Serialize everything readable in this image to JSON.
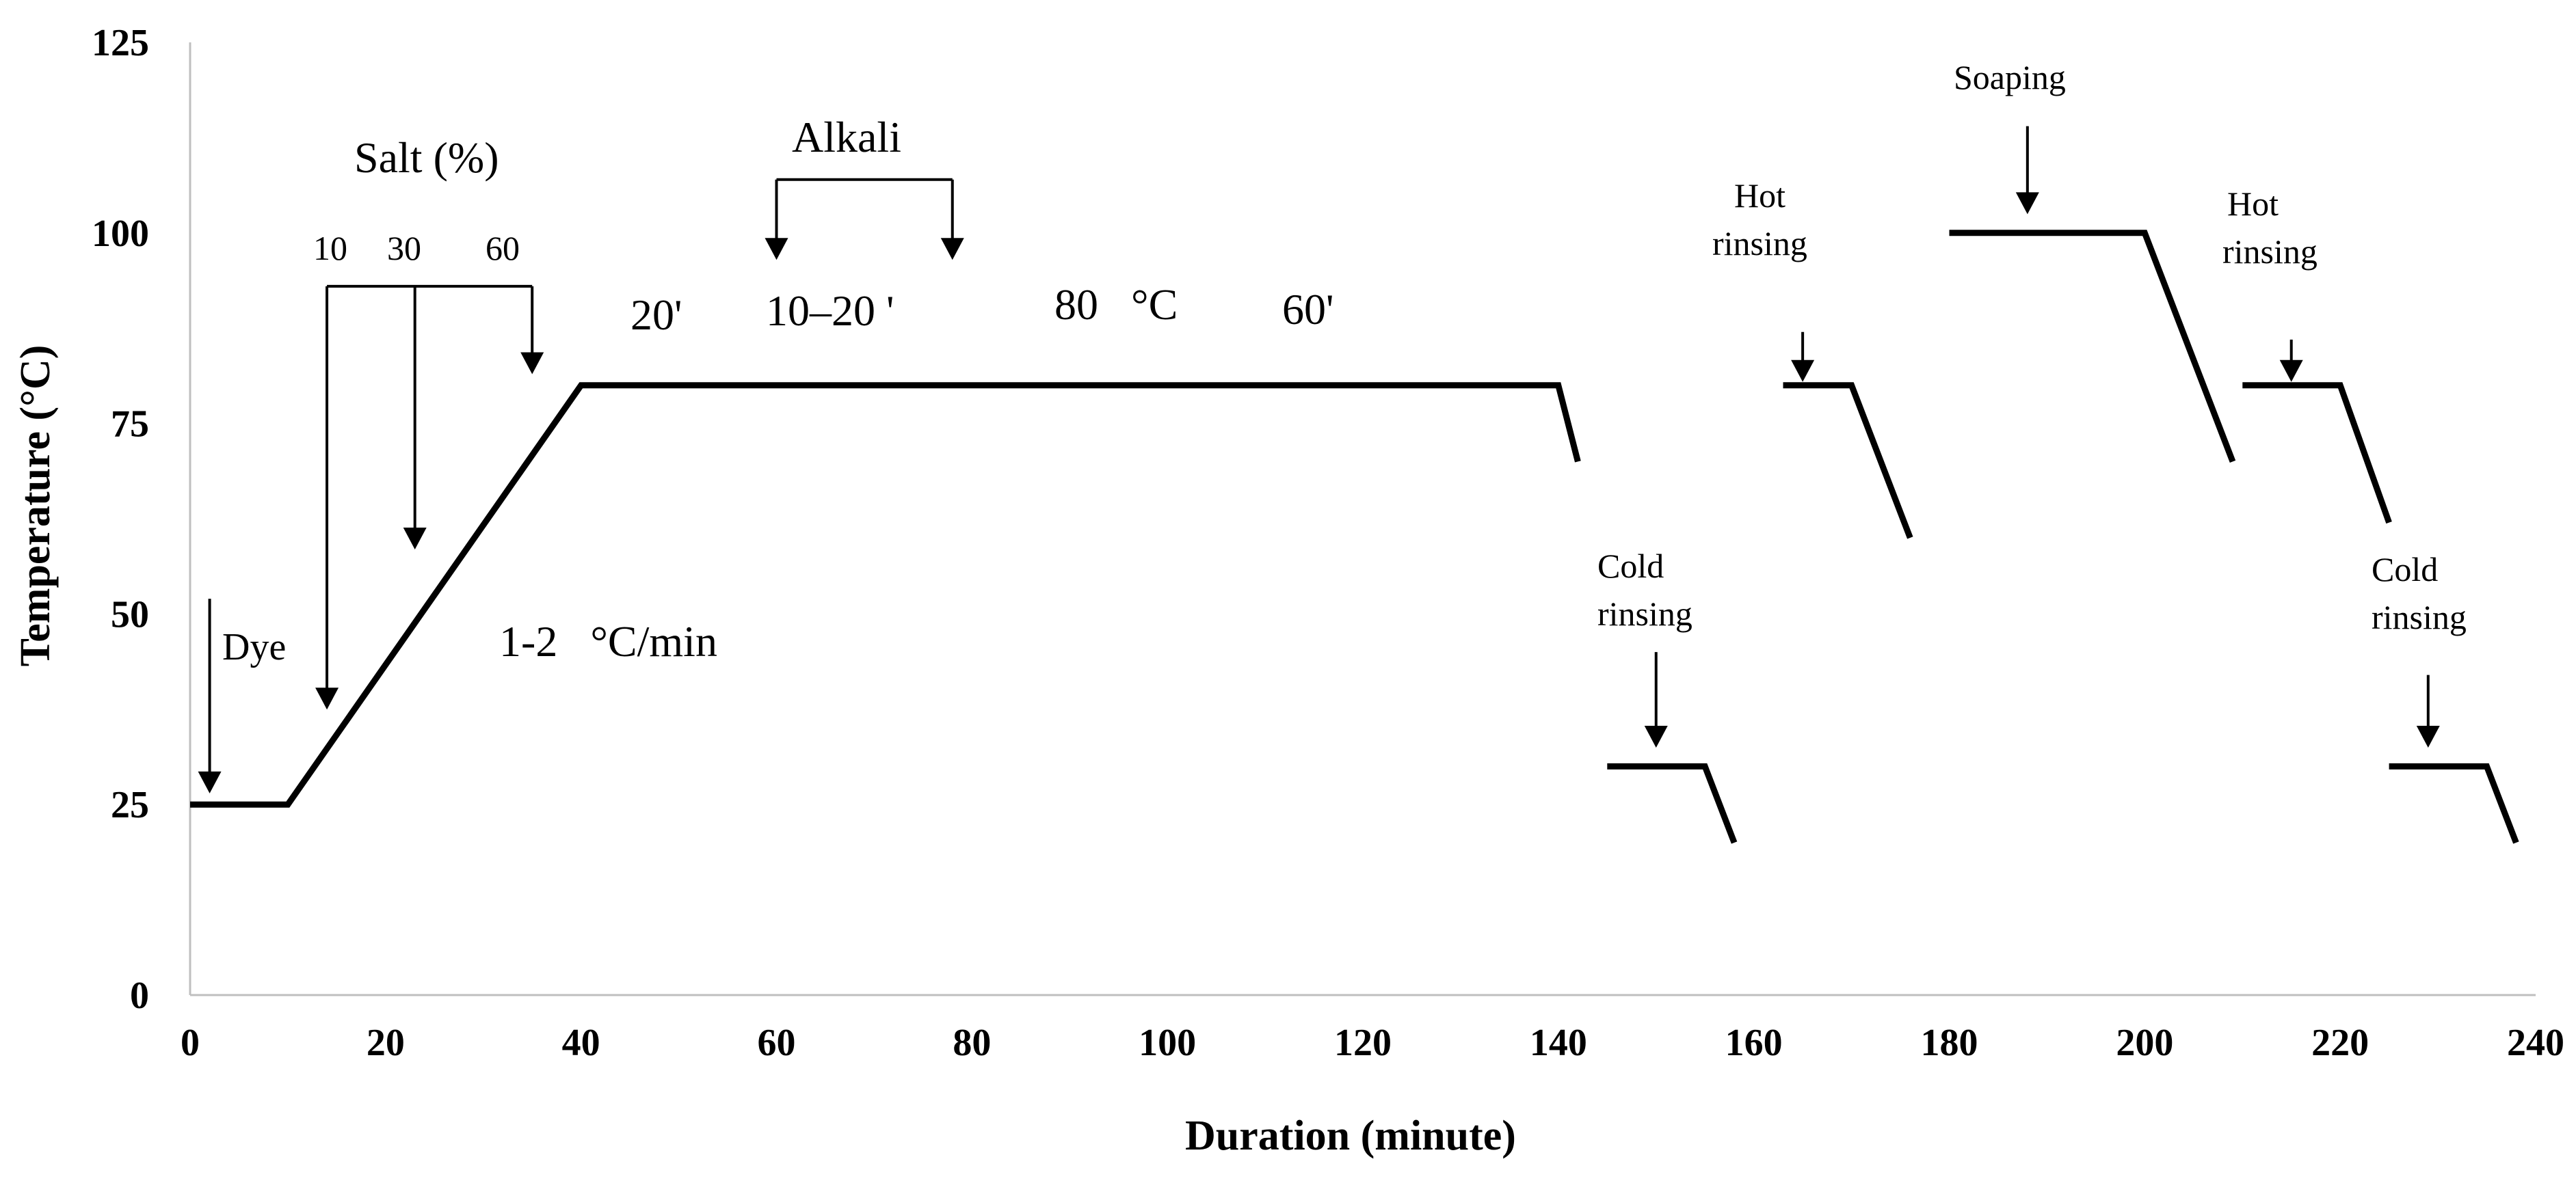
{
  "chart_data": {
    "type": "line",
    "title": "",
    "xlabel": "Duration (minute)",
    "ylabel": "Temperature (°C)",
    "xlim": [
      0,
      240
    ],
    "ylim": [
      0,
      125
    ],
    "xticks": [
      0,
      20,
      40,
      60,
      80,
      100,
      120,
      140,
      160,
      180,
      200,
      220,
      240
    ],
    "yticks": [
      0,
      25,
      50,
      75,
      100,
      125
    ],
    "grid": false,
    "legend": "none",
    "color": "#000000",
    "segments": [
      {
        "name": "dyeing",
        "x": [
          0,
          10,
          40,
          140,
          142
        ],
        "y": [
          25,
          25,
          80,
          80,
          70
        ]
      },
      {
        "name": "cold-rinsing-1",
        "x": [
          145,
          155,
          158
        ],
        "y": [
          30,
          30,
          20
        ]
      },
      {
        "name": "hot-rinsing-1",
        "x": [
          163,
          170,
          176
        ],
        "y": [
          80,
          80,
          60
        ]
      },
      {
        "name": "soaping",
        "x": [
          180,
          200,
          209
        ],
        "y": [
          100,
          100,
          70
        ]
      },
      {
        "name": "hot-rinsing-2",
        "x": [
          210,
          220,
          225
        ],
        "y": [
          80,
          80,
          62
        ]
      },
      {
        "name": "cold-rinsing-2",
        "x": [
          225,
          235,
          238
        ],
        "y": [
          30,
          30,
          20
        ]
      }
    ],
    "annotations": {
      "dye": "Dye",
      "salt_title": "Salt (%)",
      "salt_10": "10",
      "salt_30": "30",
      "salt_60": "60",
      "alkali": "Alkali",
      "time_20": "20'",
      "time_10_20": "10–20 '",
      "temp_80": "80   °C",
      "time_60": "60'",
      "rate": "1-2   °C/min",
      "cold_rinsing_1_a": "Cold",
      "cold_rinsing_1_b": "rinsing",
      "hot_rinsing_1_a": "Hot",
      "hot_rinsing_1_b": "rinsing",
      "soaping": "Soaping",
      "hot_rinsing_2_a": "Hot",
      "hot_rinsing_2_b": "rinsing",
      "cold_rinsing_2_a": "Cold",
      "cold_rinsing_2_b": "rinsing"
    },
    "arrows": [
      {
        "name": "dye-arrow",
        "x": 2,
        "y_from": 52,
        "y_to": 27
      },
      {
        "name": "salt-10-arrow",
        "x": 14,
        "y_from": 93,
        "y_to": 38
      },
      {
        "name": "salt-30-arrow",
        "x": 23,
        "y_from": 93,
        "y_to": 59
      },
      {
        "name": "salt-60-arrow",
        "x": 35,
        "y_from": 93,
        "y_to": 82
      },
      {
        "name": "alkali-arrow-start",
        "x": 60,
        "y_from": 107,
        "y_to": 97
      },
      {
        "name": "alkali-arrow-end",
        "x": 78,
        "y_from": 107,
        "y_to": 97
      },
      {
        "name": "cold-rinsing-1-arrow",
        "x": 150,
        "y_from": 45,
        "y_to": 33
      },
      {
        "name": "hot-rinsing-1-arrow",
        "x": 165,
        "y_from": 87,
        "y_to": 81
      },
      {
        "name": "soaping-arrow",
        "x": 188,
        "y_from": 114,
        "y_to": 103
      },
      {
        "name": "hot-rinsing-2-arrow",
        "x": 215,
        "y_from": 86,
        "y_to": 81
      },
      {
        "name": "cold-rinsing-2-arrow",
        "x": 229,
        "y_from": 42,
        "y_to": 33
      }
    ]
  }
}
